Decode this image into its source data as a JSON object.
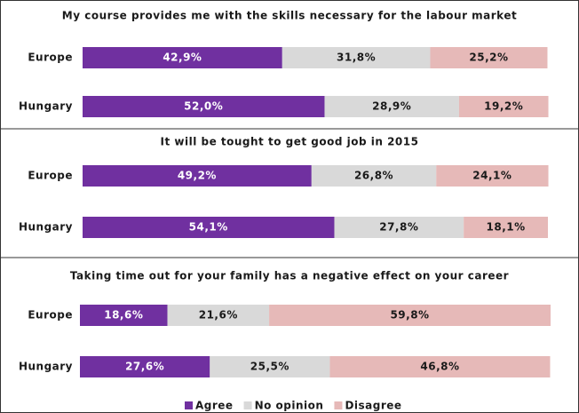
{
  "chart_data": [
    {
      "type": "bar",
      "stacked": true,
      "orientation": "horizontal",
      "title": "My course provides me with the skills necessary for the labour market",
      "categories": [
        "Europe",
        "Hungary"
      ],
      "xlim": [
        0,
        100
      ],
      "series": [
        {
          "color": "#7030a0",
          "values": [
            42.9,
            52.0
          ],
          "value_labels": [
            "42,9%",
            "52,0%"
          ]
        },
        {
          "color": "#d9d9d9",
          "values": [
            31.8,
            28.9
          ],
          "value_labels": [
            "31,8%",
            "28,9%"
          ]
        },
        {
          "color": "#e6b9b8",
          "values": [
            25.2,
            19.2
          ],
          "value_labels": [
            "25,2%",
            "19,2%"
          ]
        }
      ]
    },
    {
      "type": "bar",
      "stacked": true,
      "orientation": "horizontal",
      "title": "It will be tought to get good job in 2015",
      "categories": [
        "Europe",
        "Hungary"
      ],
      "xlim": [
        0,
        100
      ],
      "series": [
        {
          "color": "#7030a0",
          "values": [
            49.2,
            54.1
          ],
          "value_labels": [
            "49,2%",
            "54,1%"
          ]
        },
        {
          "color": "#d9d9d9",
          "values": [
            26.8,
            27.8
          ],
          "value_labels": [
            "26,8%",
            "27,8%"
          ]
        },
        {
          "color": "#e6b9b8",
          "values": [
            24.1,
            18.1
          ],
          "value_labels": [
            "24,1%",
            "18,1%"
          ]
        }
      ]
    },
    {
      "type": "bar",
      "stacked": true,
      "orientation": "horizontal",
      "title": "Taking time out for your family has a negative effect on your career",
      "categories": [
        "Europe",
        "Hungary"
      ],
      "xlim": [
        0,
        100
      ],
      "legend": "bottom",
      "series": [
        {
          "name": "Agree",
          "color": "#7030a0",
          "values": [
            18.6,
            27.6
          ],
          "value_labels": [
            "18,6%",
            "27,6%"
          ]
        },
        {
          "name": "No opinion",
          "color": "#d9d9d9",
          "values": [
            21.6,
            25.5
          ],
          "value_labels": [
            "21,6%",
            "25,5%"
          ]
        },
        {
          "name": "Disagree",
          "color": "#e6b9b8",
          "values": [
            59.8,
            46.8
          ],
          "value_labels": [
            "59,8%",
            "46,8%"
          ]
        }
      ]
    }
  ]
}
